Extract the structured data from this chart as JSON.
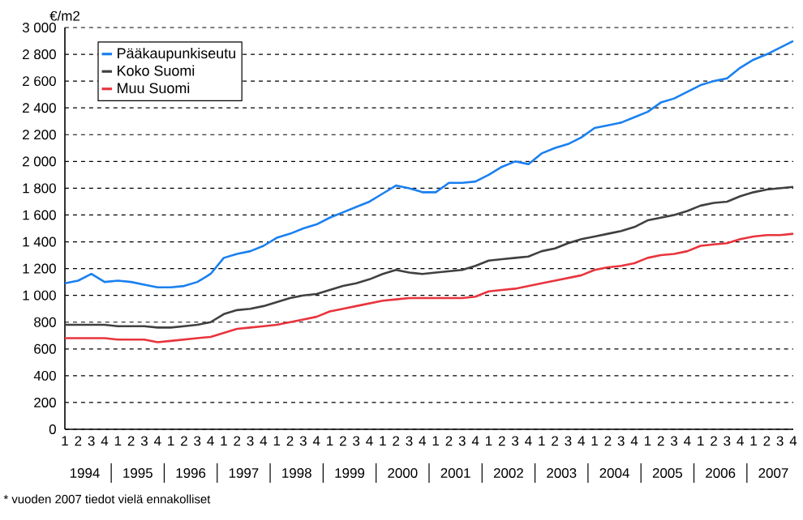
{
  "chart_data": {
    "type": "line",
    "ylabel": "€/m2",
    "categories": [
      "1",
      "2",
      "3",
      "4",
      "1",
      "2",
      "3",
      "4",
      "1",
      "2",
      "3",
      "4",
      "1",
      "2",
      "3",
      "4",
      "1",
      "2",
      "3",
      "4",
      "1",
      "2",
      "3",
      "4",
      "1",
      "2",
      "3",
      "4",
      "1",
      "2",
      "3",
      "4",
      "1",
      "2",
      "3",
      "4",
      "1",
      "2",
      "3",
      "4",
      "1",
      "2",
      "3",
      "4",
      "1",
      "2",
      "3",
      "4",
      "1",
      "2",
      "3",
      "4",
      "1",
      "2",
      "3",
      "4"
    ],
    "series": [
      {
        "name": "Pääkaupunkiseutu",
        "color": "#1a80f0",
        "values": [
          1090,
          1110,
          1160,
          1100,
          1110,
          1100,
          1080,
          1060,
          1060,
          1070,
          1100,
          1160,
          1280,
          1310,
          1330,
          1370,
          1430,
          1460,
          1500,
          1530,
          1580,
          1620,
          1660,
          1700,
          1760,
          1820,
          1800,
          1770,
          1770,
          1840,
          1840,
          1850,
          1900,
          1960,
          2000,
          1980,
          2060,
          2100,
          2130,
          2180,
          2250,
          2270,
          2290,
          2330,
          2370,
          2440,
          2470,
          2520,
          2570,
          2600,
          2620,
          2700,
          2760,
          2800,
          2850,
          2900
        ]
      },
      {
        "name": "Koko Suomi",
        "color": "#404040",
        "values": [
          780,
          780,
          780,
          780,
          770,
          770,
          770,
          760,
          760,
          770,
          780,
          800,
          860,
          890,
          900,
          920,
          950,
          980,
          1000,
          1010,
          1040,
          1070,
          1090,
          1120,
          1160,
          1190,
          1170,
          1160,
          1170,
          1180,
          1190,
          1220,
          1260,
          1270,
          1280,
          1290,
          1330,
          1350,
          1390,
          1420,
          1440,
          1460,
          1480,
          1510,
          1560,
          1580,
          1600,
          1630,
          1670,
          1690,
          1700,
          1740,
          1770,
          1790,
          1800,
          1810
        ]
      },
      {
        "name": "Muu Suomi",
        "color": "#e8343c",
        "values": [
          680,
          680,
          680,
          680,
          670,
          670,
          670,
          650,
          660,
          670,
          680,
          690,
          720,
          750,
          760,
          770,
          780,
          800,
          820,
          840,
          880,
          900,
          920,
          940,
          960,
          970,
          980,
          980,
          980,
          980,
          980,
          990,
          1030,
          1040,
          1050,
          1070,
          1090,
          1110,
          1130,
          1150,
          1190,
          1210,
          1220,
          1240,
          1280,
          1300,
          1310,
          1330,
          1370,
          1380,
          1390,
          1420,
          1440,
          1450,
          1450,
          1460
        ]
      }
    ],
    "ylim": [
      0,
      3000
    ],
    "yticks": [
      0,
      200,
      400,
      600,
      800,
      {
        "value": 1000,
        "label": "1 000"
      },
      {
        "value": 1200,
        "label": "1 200"
      },
      {
        "value": 1400,
        "label": "1 400"
      },
      {
        "value": 1600,
        "label": "1 600"
      },
      {
        "value": 1800,
        "label": "1 800"
      },
      {
        "value": 2000,
        "label": "2 000"
      },
      {
        "value": 2200,
        "label": "2 200"
      },
      {
        "value": 2400,
        "label": "2 400"
      },
      {
        "value": 2600,
        "label": "2 600"
      },
      {
        "value": 2800,
        "label": "2 800"
      },
      {
        "value": 3000,
        "label": "3 000"
      }
    ],
    "grid": "y",
    "legend": "top left",
    "marker": "none",
    "line_style": "solid",
    "annotations": [
      "1994",
      "1995",
      "1996",
      "1997",
      "1998",
      "1999",
      "2000",
      "2001",
      "2002",
      "2003",
      "2004",
      "2005",
      "2006",
      "2007",
      "* vuoden 2007 tiedot vielä ennakolliset"
    ]
  }
}
